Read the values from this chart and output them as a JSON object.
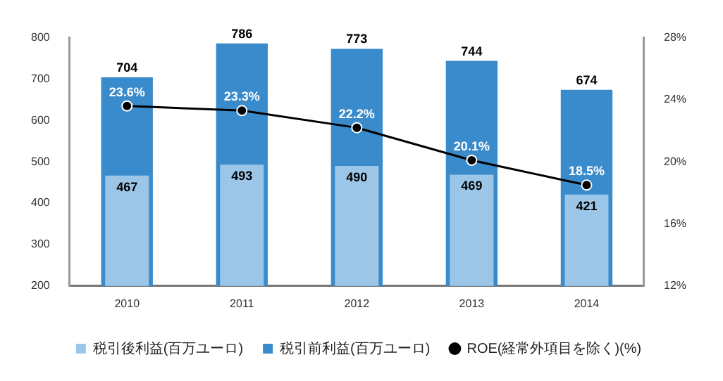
{
  "chart_data": {
    "type": "bar",
    "categories": [
      "2010",
      "2011",
      "2012",
      "2013",
      "2014"
    ],
    "series": [
      {
        "name": "税引後利益(百万ユーロ)",
        "color": "#9cc6e8",
        "values": [
          467,
          493,
          490,
          469,
          421
        ]
      },
      {
        "name": "税引前利益(百万ユーロ)",
        "color": "#3a8bcb",
        "values": [
          704,
          786,
          773,
          744,
          674
        ]
      },
      {
        "name": "ROE(経常外項目を除く)(%)",
        "type": "line",
        "axis": "y2",
        "color": "#000000",
        "values": [
          23.6,
          23.3,
          22.2,
          20.1,
          18.5
        ],
        "value_labels": [
          "23.6%",
          "23.3%",
          "22.2%",
          "20.1%",
          "18.5%"
        ]
      }
    ],
    "ylim": [
      200,
      800
    ],
    "yticks": [
      200,
      300,
      400,
      500,
      600,
      700,
      800
    ],
    "y2lim": [
      12,
      28
    ],
    "y2ticks": [
      {
        "value": 12,
        "label": "12%"
      },
      {
        "value": 16,
        "label": "16%"
      },
      {
        "value": 20,
        "label": "20%"
      },
      {
        "value": 24,
        "label": "24%"
      },
      {
        "value": 28,
        "label": "28%"
      }
    ],
    "data_labels": true,
    "legend": "bottom",
    "marker": "circle"
  }
}
